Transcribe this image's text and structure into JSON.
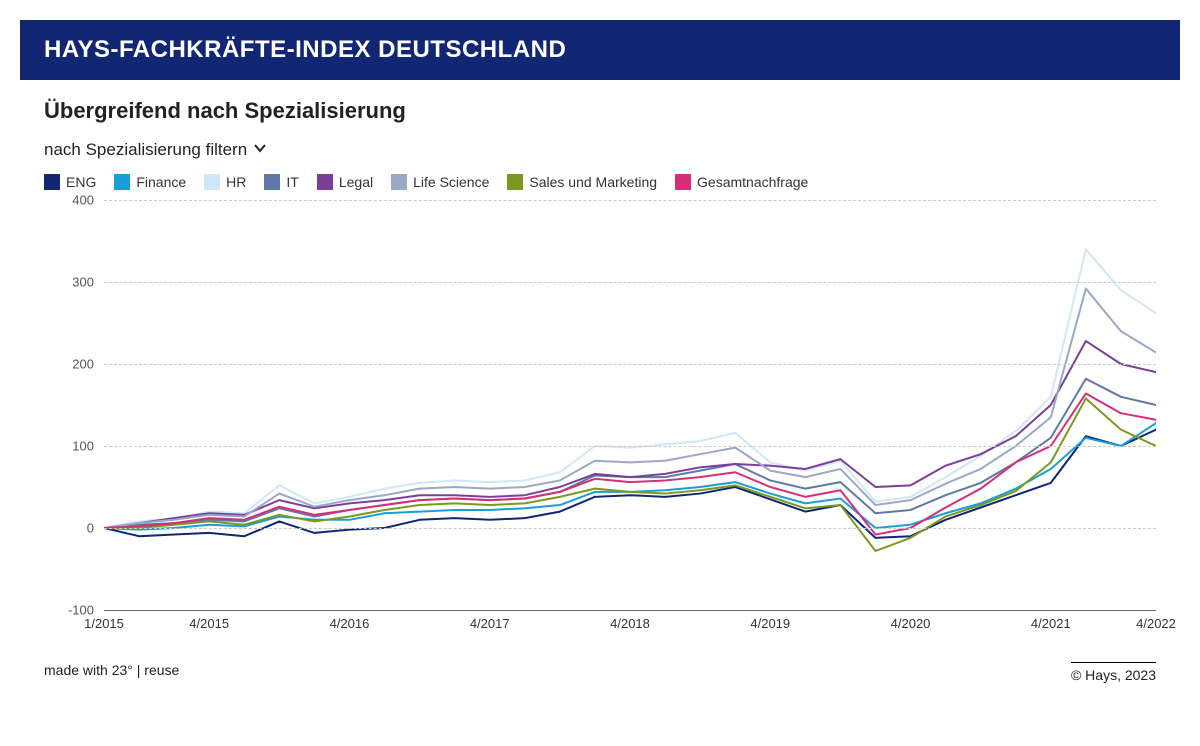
{
  "banner_title": "HAYS-FACHKRÄFTE-INDEX DEUTSCHLAND",
  "subtitle": "Übergreifend nach Spezialisierung",
  "filter_label": "nach Spezialisierung filtern",
  "footer_left": "made with 23° | reuse",
  "footer_right": "© Hays, 2023",
  "chart": {
    "type": "line",
    "background_color": "#ffffff",
    "grid_color": "#c9c9c9",
    "axis_color": "#666666",
    "label_fontsize": 13,
    "line_width": 2,
    "ylim": [
      -100,
      400
    ],
    "yticks": [
      -100,
      0,
      100,
      200,
      300,
      400
    ],
    "x_count": 31,
    "xticks": [
      {
        "i": 0,
        "label": "1/2015"
      },
      {
        "i": 3,
        "label": "4/2015"
      },
      {
        "i": 7,
        "label": "4/2016"
      },
      {
        "i": 11,
        "label": "4/2017"
      },
      {
        "i": 15,
        "label": "4/2018"
      },
      {
        "i": 19,
        "label": "4/2019"
      },
      {
        "i": 23,
        "label": "4/2020"
      },
      {
        "i": 27,
        "label": "4/2021"
      },
      {
        "i": 30,
        "label": "4/2022"
      }
    ],
    "series": [
      {
        "name": "ENG",
        "color": "#112774",
        "values": [
          0,
          -10,
          -8,
          -6,
          -10,
          8,
          -6,
          -2,
          0,
          10,
          12,
          10,
          12,
          20,
          38,
          40,
          38,
          42,
          50,
          35,
          20,
          28,
          -12,
          -10,
          10,
          25,
          40,
          55,
          112,
          100,
          120
        ]
      },
      {
        "name": "Finance",
        "color": "#1b9dd9",
        "values": [
          0,
          -2,
          0,
          4,
          2,
          14,
          10,
          10,
          18,
          20,
          22,
          22,
          24,
          28,
          44,
          44,
          46,
          50,
          56,
          42,
          30,
          36,
          0,
          4,
          18,
          30,
          48,
          72,
          110,
          100,
          128
        ]
      },
      {
        "name": "HR",
        "color": "#cfe7f7",
        "values": [
          0,
          8,
          12,
          20,
          18,
          52,
          30,
          38,
          48,
          55,
          58,
          56,
          58,
          68,
          100,
          98,
          102,
          106,
          116,
          80,
          70,
          82,
          32,
          38,
          62,
          88,
          118,
          160,
          340,
          290,
          262
        ]
      },
      {
        "name": "IT",
        "color": "#5f7aa6",
        "values": [
          0,
          4,
          6,
          10,
          8,
          24,
          14,
          22,
          28,
          34,
          36,
          34,
          36,
          44,
          64,
          62,
          62,
          70,
          78,
          58,
          48,
          56,
          18,
          22,
          40,
          55,
          80,
          110,
          182,
          160,
          150
        ]
      },
      {
        "name": "Legal",
        "color": "#7b3f98",
        "values": [
          0,
          6,
          12,
          18,
          16,
          34,
          24,
          30,
          34,
          40,
          40,
          38,
          40,
          50,
          66,
          62,
          66,
          74,
          78,
          76,
          72,
          84,
          50,
          52,
          76,
          90,
          112,
          150,
          228,
          200,
          190
        ]
      },
      {
        "name": "Life Science",
        "color": "#9aa8c7",
        "values": [
          0,
          6,
          10,
          16,
          14,
          42,
          26,
          34,
          40,
          48,
          50,
          48,
          50,
          58,
          82,
          80,
          82,
          90,
          98,
          70,
          62,
          72,
          28,
          34,
          54,
          72,
          100,
          135,
          292,
          240,
          214
        ]
      },
      {
        "name": "Sales und Marketing",
        "color": "#7a9a1f",
        "values": [
          0,
          0,
          4,
          8,
          4,
          16,
          8,
          14,
          22,
          28,
          30,
          28,
          30,
          38,
          48,
          44,
          42,
          46,
          52,
          38,
          24,
          28,
          -28,
          -12,
          14,
          28,
          45,
          80,
          158,
          120,
          100
        ]
      },
      {
        "name": "Gesamtnachfrage",
        "color": "#d62e79",
        "values": [
          0,
          2,
          6,
          12,
          10,
          26,
          16,
          22,
          28,
          34,
          36,
          34,
          36,
          44,
          60,
          56,
          58,
          62,
          68,
          50,
          38,
          46,
          -8,
          0,
          25,
          48,
          80,
          100,
          164,
          140,
          132
        ]
      }
    ]
  }
}
